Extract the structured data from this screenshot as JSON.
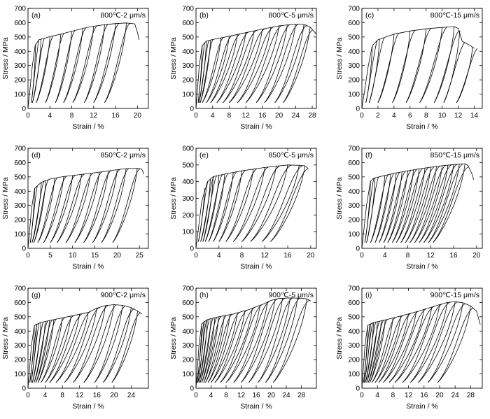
{
  "figure": {
    "xlabel": "Strain / %",
    "ylabel": "Stress / MPa"
  },
  "chart_data": [
    {
      "panel": "(a)",
      "condition": "800℃-2 μm/s",
      "type": "line",
      "xlim": [
        0,
        22
      ],
      "xticks": [
        0,
        4,
        8,
        12,
        16,
        20
      ],
      "ylim": [
        0,
        700
      ],
      "yticks": [
        0,
        100,
        200,
        300,
        400,
        500,
        600,
        700
      ],
      "peak": 596,
      "envelope": [
        [
          0,
          0
        ],
        [
          0.8,
          300
        ],
        [
          1.3,
          440
        ],
        [
          2,
          480
        ],
        [
          4,
          502
        ],
        [
          6,
          520
        ],
        [
          8,
          540
        ],
        [
          10,
          560
        ],
        [
          12,
          575
        ],
        [
          14,
          586
        ],
        [
          16,
          594
        ],
        [
          18,
          598
        ],
        [
          19.5,
          592
        ],
        [
          20,
          530
        ],
        [
          20.3,
          480
        ]
      ],
      "unload_points": [
        [
          1.4,
          452
        ],
        [
          2.4,
          488
        ],
        [
          4,
          502
        ],
        [
          6,
          520
        ],
        [
          8,
          540
        ],
        [
          10,
          560
        ],
        [
          12,
          575
        ],
        [
          14,
          586
        ],
        [
          16,
          594
        ],
        [
          18,
          598
        ]
      ],
      "unload_ends": [
        0.6,
        0.8,
        1.5,
        3.2,
        5,
        6.5,
        8.2,
        10.3,
        12,
        14
      ]
    },
    {
      "panel": "(b)",
      "condition": "800℃-5 μm/s",
      "type": "line",
      "xlim": [
        0,
        29
      ],
      "xticks": [
        0,
        4,
        8,
        12,
        16,
        20,
        24,
        28
      ],
      "ylim": [
        0,
        700
      ],
      "yticks": [
        0,
        100,
        200,
        300,
        400,
        500,
        600,
        700
      ],
      "peak": 592,
      "envelope": [
        [
          0,
          0
        ],
        [
          0.8,
          300
        ],
        [
          1.5,
          440
        ],
        [
          2.5,
          472
        ],
        [
          4,
          482
        ],
        [
          8,
          505
        ],
        [
          12,
          530
        ],
        [
          16,
          555
        ],
        [
          20,
          578
        ],
        [
          24,
          590
        ],
        [
          26,
          588
        ],
        [
          27.5,
          570
        ],
        [
          29,
          520
        ]
      ],
      "unload_points": [
        [
          1.5,
          440
        ],
        [
          2.5,
          472
        ],
        [
          3.5,
          478
        ],
        [
          6,
          495
        ],
        [
          8,
          505
        ],
        [
          10,
          518
        ],
        [
          12,
          530
        ],
        [
          14,
          542
        ],
        [
          16,
          555
        ],
        [
          18,
          566
        ],
        [
          20,
          578
        ],
        [
          22,
          586
        ],
        [
          24,
          590
        ],
        [
          26,
          588
        ],
        [
          27.5,
          570
        ]
      ],
      "unload_ends": [
        0.5,
        0.7,
        1,
        1.5,
        2.5,
        3.5,
        5,
        6.5,
        8,
        10,
        12,
        14.5,
        16.5,
        19,
        21
      ]
    },
    {
      "panel": "(c)",
      "condition": "800℃-15 μm/s",
      "type": "line",
      "xlim": [
        0,
        15
      ],
      "xticks": [
        0,
        2,
        4,
        6,
        8,
        10,
        12,
        14
      ],
      "ylim": [
        0,
        700
      ],
      "yticks": [
        0,
        100,
        200,
        300,
        400,
        500,
        600,
        700
      ],
      "peak": 572,
      "envelope": [
        [
          0,
          0
        ],
        [
          0.8,
          300
        ],
        [
          1.3,
          440
        ],
        [
          2,
          480
        ],
        [
          4,
          520
        ],
        [
          6,
          542
        ],
        [
          8,
          557
        ],
        [
          10,
          567
        ],
        [
          11.5,
          572
        ],
        [
          12,
          560
        ],
        [
          12.5,
          470
        ],
        [
          13.5,
          440
        ],
        [
          14,
          420
        ]
      ],
      "unload_points": [
        [
          1.3,
          440
        ],
        [
          2.2,
          482
        ],
        [
          4,
          520
        ],
        [
          6,
          542
        ],
        [
          8,
          557
        ],
        [
          10,
          567
        ],
        [
          11.5,
          572
        ],
        [
          12.2,
          545
        ],
        [
          13.8,
          430
        ]
      ],
      "unload_ends": [
        0.5,
        0.9,
        2,
        3.8,
        5.5,
        7.2,
        9,
        10.2,
        11.8
      ]
    },
    {
      "panel": "(d)",
      "condition": "850℃-2 μm/s",
      "type": "line",
      "xlim": [
        0,
        27
      ],
      "xticks": [
        0,
        5,
        10,
        15,
        20,
        25
      ],
      "ylim": [
        0,
        700
      ],
      "yticks": [
        0,
        100,
        200,
        300,
        400,
        500,
        600,
        700
      ],
      "peak": 560,
      "envelope": [
        [
          0,
          0
        ],
        [
          0.8,
          280
        ],
        [
          1.5,
          420
        ],
        [
          3,
          462
        ],
        [
          5,
          485
        ],
        [
          8,
          502
        ],
        [
          12,
          517
        ],
        [
          16,
          533
        ],
        [
          20,
          550
        ],
        [
          22,
          558
        ],
        [
          24.5,
          560
        ],
        [
          25.5,
          555
        ],
        [
          26,
          520
        ]
      ],
      "unload_points": [
        [
          1.5,
          420
        ],
        [
          3,
          462
        ],
        [
          4,
          475
        ],
        [
          6,
          490
        ],
        [
          8,
          502
        ],
        [
          10,
          510
        ],
        [
          12,
          517
        ],
        [
          14,
          525
        ],
        [
          16,
          533
        ],
        [
          18,
          541
        ],
        [
          20,
          550
        ],
        [
          22,
          558
        ],
        [
          24.5,
          560
        ]
      ],
      "unload_ends": [
        0.5,
        0.9,
        1.3,
        2.2,
        3.5,
        5,
        6.5,
        8.5,
        10.5,
        12.5,
        14.5,
        16.5,
        19
      ]
    },
    {
      "panel": "(e)",
      "condition": "850℃-5 μm/s",
      "type": "line",
      "xlim": [
        0,
        21
      ],
      "xticks": [
        0,
        4,
        8,
        12,
        16,
        20
      ],
      "ylim": [
        0,
        600
      ],
      "yticks": [
        0,
        100,
        200,
        300,
        400,
        500,
        600
      ],
      "peak": 500,
      "envelope": [
        [
          0,
          0
        ],
        [
          1,
          280
        ],
        [
          2,
          400
        ],
        [
          3,
          430
        ],
        [
          5,
          445
        ],
        [
          8,
          465
        ],
        [
          12,
          485
        ],
        [
          16,
          500
        ],
        [
          18,
          498
        ],
        [
          19,
          495
        ],
        [
          19.5,
          480
        ]
      ],
      "unload_points": [
        [
          1.5,
          360
        ],
        [
          2.5,
          415
        ],
        [
          3,
          430
        ],
        [
          4,
          438
        ],
        [
          5,
          445
        ],
        [
          6.5,
          455
        ],
        [
          8,
          465
        ],
        [
          10,
          475
        ],
        [
          12,
          485
        ],
        [
          14,
          494
        ],
        [
          16,
          500
        ],
        [
          18,
          498
        ],
        [
          19,
          495
        ]
      ],
      "unload_ends": [
        0.4,
        0.8,
        1.2,
        1.6,
        2.2,
        3,
        4,
        5.2,
        6.5,
        8,
        9.5,
        11.5,
        13
      ]
    },
    {
      "panel": "(f)",
      "condition": "850℃-15 μm/s",
      "type": "line",
      "xlim": [
        0,
        21
      ],
      "xticks": [
        0,
        4,
        8,
        12,
        16,
        20
      ],
      "ylim": [
        0,
        700
      ],
      "yticks": [
        0,
        100,
        200,
        300,
        400,
        500,
        600,
        700
      ],
      "peak": 592,
      "envelope": [
        [
          0,
          0
        ],
        [
          0.8,
          300
        ],
        [
          1.5,
          470
        ],
        [
          2,
          490
        ],
        [
          4,
          510
        ],
        [
          6,
          528
        ],
        [
          8,
          543
        ],
        [
          10,
          556
        ],
        [
          12,
          568
        ],
        [
          14,
          578
        ],
        [
          16,
          586
        ],
        [
          18,
          592
        ],
        [
          18.5,
          580
        ],
        [
          19.2,
          520
        ],
        [
          19.5,
          480
        ]
      ],
      "unload_points": [
        [
          1.5,
          470
        ],
        [
          2.3,
          495
        ],
        [
          4,
          510
        ],
        [
          5,
          520
        ],
        [
          6,
          528
        ],
        [
          7,
          536
        ],
        [
          8,
          543
        ],
        [
          9,
          550
        ],
        [
          10,
          556
        ],
        [
          11,
          562
        ],
        [
          12,
          568
        ],
        [
          13,
          573
        ],
        [
          14,
          578
        ],
        [
          15,
          582
        ],
        [
          16,
          586
        ],
        [
          17,
          589
        ],
        [
          18,
          592
        ]
      ],
      "unload_ends": [
        0.5,
        0.8,
        1.5,
        2.3,
        3,
        3.8,
        4.5,
        5.3,
        6,
        6.8,
        7.6,
        8.4,
        9.2,
        10,
        10.8,
        11.6,
        12.4
      ]
    },
    {
      "panel": "(g)",
      "condition": "900℃-2 μm/s",
      "type": "line",
      "xlim": [
        0,
        28
      ],
      "xticks": [
        0,
        4,
        8,
        12,
        16,
        20,
        24
      ],
      "ylim": [
        0,
        700
      ],
      "yticks": [
        0,
        100,
        200,
        300,
        400,
        500,
        600,
        700
      ],
      "peak": 585,
      "envelope": [
        [
          0,
          0
        ],
        [
          0.8,
          300
        ],
        [
          1.5,
          440
        ],
        [
          3,
          460
        ],
        [
          6,
          480
        ],
        [
          10,
          505
        ],
        [
          14,
          530
        ],
        [
          16,
          560
        ],
        [
          18,
          578
        ],
        [
          20,
          585
        ],
        [
          22,
          580
        ],
        [
          24,
          565
        ],
        [
          25.5,
          540
        ],
        [
          26.5,
          520
        ]
      ],
      "unload_points": [
        [
          1.5,
          440
        ],
        [
          2,
          450
        ],
        [
          3,
          460
        ],
        [
          4,
          467
        ],
        [
          5,
          473
        ],
        [
          6,
          480
        ],
        [
          8,
          493
        ],
        [
          10,
          505
        ],
        [
          12,
          518
        ],
        [
          14,
          530
        ],
        [
          16,
          560
        ],
        [
          18,
          578
        ],
        [
          20,
          585
        ],
        [
          22,
          580
        ],
        [
          24,
          565
        ],
        [
          25.5,
          540
        ]
      ],
      "unload_ends": [
        0.4,
        0.7,
        1,
        1.4,
        1.8,
        2.3,
        3,
        4,
        5,
        6.5,
        8.5,
        10.5,
        13,
        15.5,
        17.5,
        19.5
      ]
    },
    {
      "panel": "(h)",
      "condition": "900℃-5 μm/s",
      "type": "line",
      "xlim": [
        0,
        32
      ],
      "xticks": [
        0,
        4,
        8,
        12,
        16,
        20,
        24,
        28
      ],
      "ylim": [
        0,
        700
      ],
      "yticks": [
        0,
        100,
        200,
        300,
        400,
        500,
        600,
        700
      ],
      "peak": 632,
      "envelope": [
        [
          0,
          0
        ],
        [
          0.8,
          300
        ],
        [
          1.5,
          450
        ],
        [
          3,
          480
        ],
        [
          6,
          500
        ],
        [
          10,
          520
        ],
        [
          14,
          550
        ],
        [
          18,
          590
        ],
        [
          20,
          615
        ],
        [
          22,
          628
        ],
        [
          25,
          632
        ],
        [
          28,
          630
        ],
        [
          29.5,
          625
        ],
        [
          30.5,
          610
        ]
      ],
      "unload_points": [
        [
          1.5,
          450
        ],
        [
          2.2,
          470
        ],
        [
          3,
          480
        ],
        [
          4,
          488
        ],
        [
          5,
          495
        ],
        [
          6,
          500
        ],
        [
          7.5,
          508
        ],
        [
          9,
          516
        ],
        [
          11,
          528
        ],
        [
          13,
          542
        ],
        [
          15,
          560
        ],
        [
          17,
          580
        ],
        [
          19,
          602
        ],
        [
          21,
          622
        ],
        [
          23,
          630
        ],
        [
          25,
          632
        ],
        [
          27,
          631
        ],
        [
          29.5,
          625
        ]
      ],
      "unload_ends": [
        0.3,
        0.5,
        0.8,
        1.1,
        1.5,
        2,
        2.5,
        3.2,
        4,
        5,
        6.5,
        8,
        10,
        12,
        14,
        16.5,
        18.5,
        20.5
      ]
    },
    {
      "panel": "(i)",
      "condition": "900℃-15 μm/s",
      "type": "line",
      "xlim": [
        0,
        31
      ],
      "xticks": [
        0,
        4,
        8,
        12,
        16,
        20,
        24,
        28
      ],
      "ylim": [
        0,
        700
      ],
      "yticks": [
        0,
        100,
        200,
        300,
        400,
        500,
        600,
        700
      ],
      "peak": 605,
      "envelope": [
        [
          0,
          0
        ],
        [
          0.8,
          300
        ],
        [
          1.5,
          440
        ],
        [
          3,
          460
        ],
        [
          6,
          478
        ],
        [
          10,
          505
        ],
        [
          14,
          535
        ],
        [
          18,
          568
        ],
        [
          20,
          585
        ],
        [
          22,
          600
        ],
        [
          24,
          605
        ],
        [
          26,
          598
        ],
        [
          28,
          575
        ],
        [
          29.5,
          540
        ],
        [
          30.5,
          445
        ]
      ],
      "unload_points": [
        [
          1.5,
          440
        ],
        [
          2.2,
          452
        ],
        [
          3,
          460
        ],
        [
          4,
          466
        ],
        [
          5,
          472
        ],
        [
          6,
          478
        ],
        [
          8,
          491
        ],
        [
          10,
          505
        ],
        [
          12,
          520
        ],
        [
          14,
          535
        ],
        [
          16,
          552
        ],
        [
          18,
          568
        ],
        [
          20,
          585
        ],
        [
          22,
          600
        ],
        [
          24,
          605
        ],
        [
          26,
          598
        ],
        [
          28,
          575
        ]
      ],
      "unload_ends": [
        0.4,
        0.6,
        0.9,
        1.2,
        1.6,
        2,
        2.6,
        3.4,
        4.3,
        5.5,
        7,
        8.5,
        10.5,
        12.5,
        14.5,
        17,
        19.5
      ]
    }
  ]
}
